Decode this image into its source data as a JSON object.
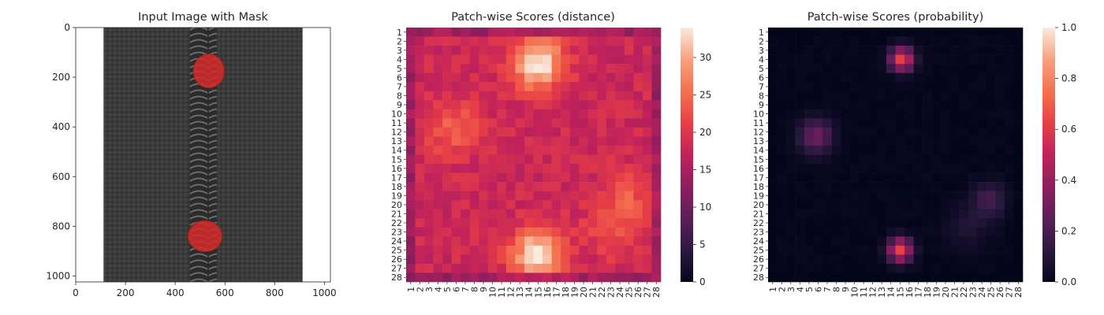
{
  "chart_data": [
    {
      "type": "image",
      "title": "Input Image with Mask",
      "xlabel": "",
      "ylabel": "",
      "xlim": [
        0,
        1024
      ],
      "ylim": [
        1024,
        0
      ],
      "xticks": [
        0,
        200,
        400,
        600,
        800,
        1000
      ],
      "yticks": [
        0,
        200,
        400,
        600,
        800,
        1000
      ],
      "xtick_labels": [
        "0",
        "200",
        "400",
        "600",
        "800",
        "1000"
      ],
      "ytick_labels": [
        "0",
        "200",
        "400",
        "600",
        "800",
        "1000"
      ],
      "fabric_color": "#3a3a3a",
      "teeth_color": "#555555",
      "mask_color": "#d62a2a",
      "mask_regions": [
        {
          "cx": 535,
          "cy": 175,
          "rx": 62,
          "ry": 68
        },
        {
          "cx": 520,
          "cy": 840,
          "rx": 68,
          "ry": 62
        }
      ]
    },
    {
      "type": "heatmap",
      "title": "Patch-wise Scores (distance)",
      "xlabel": "",
      "ylabel": "",
      "x_tick_labels": [
        "1",
        "2",
        "3",
        "4",
        "5",
        "6",
        "7",
        "8",
        "9",
        "10",
        "11",
        "12",
        "13",
        "14",
        "15",
        "16",
        "17",
        "18",
        "19",
        "20",
        "21",
        "22",
        "23",
        "24",
        "25",
        "26",
        "27",
        "28"
      ],
      "y_tick_labels": [
        "1",
        "2",
        "3",
        "4",
        "5",
        "6",
        "7",
        "8",
        "9",
        "10",
        "11",
        "12",
        "13",
        "14",
        "15",
        "16",
        "17",
        "18",
        "19",
        "20",
        "21",
        "22",
        "23",
        "24",
        "25",
        "26",
        "27",
        "28"
      ],
      "grid_size": 28,
      "colormap": "rocket",
      "colorbar": {
        "min": 0,
        "max": 34,
        "ticks": [
          0,
          5,
          10,
          15,
          20,
          25,
          30
        ],
        "tick_labels": [
          "0",
          "5",
          "10",
          "15",
          "20",
          "25",
          "30"
        ]
      },
      "base_value": 18,
      "hotspots": [
        {
          "row": 4.5,
          "col": 15,
          "amp": 16,
          "sigma": 2.0
        },
        {
          "row": 25.5,
          "col": 15,
          "amp": 16,
          "sigma": 2.0
        },
        {
          "row": 11.5,
          "col": 5.5,
          "amp": 6,
          "sigma": 2.2
        },
        {
          "row": 19.5,
          "col": 25,
          "amp": 5,
          "sigma": 2.2
        },
        {
          "row": 23,
          "col": 23,
          "amp": 4,
          "sigma": 2.0
        }
      ],
      "edge_value": 14
    },
    {
      "type": "heatmap",
      "title": "Patch-wise Scores (probability)",
      "xlabel": "",
      "ylabel": "",
      "x_tick_labels": [
        "1",
        "2",
        "3",
        "4",
        "5",
        "6",
        "7",
        "8",
        "9",
        "10",
        "11",
        "12",
        "13",
        "14",
        "15",
        "16",
        "17",
        "18",
        "19",
        "20",
        "21",
        "22",
        "23",
        "24",
        "25",
        "26",
        "27",
        "28"
      ],
      "y_tick_labels": [
        "1",
        "2",
        "3",
        "4",
        "5",
        "6",
        "7",
        "8",
        "9",
        "10",
        "11",
        "12",
        "13",
        "14",
        "15",
        "16",
        "17",
        "18",
        "19",
        "20",
        "21",
        "22",
        "23",
        "24",
        "25",
        "26",
        "27",
        "28"
      ],
      "grid_size": 28,
      "colormap": "rocket",
      "colorbar": {
        "min": 0.0,
        "max": 1.0,
        "ticks": [
          0.0,
          0.2,
          0.4,
          0.6,
          0.8,
          1.0
        ],
        "tick_labels": [
          "0.0",
          "0.2",
          "0.4",
          "0.6",
          "0.8",
          "1.0"
        ]
      },
      "base_value": 0.01,
      "hotspots": [
        {
          "row": 4,
          "col": 15.2,
          "amp": 0.62,
          "sigma": 0.9
        },
        {
          "row": 25,
          "col": 15,
          "amp": 0.62,
          "sigma": 0.9
        },
        {
          "row": 12.5,
          "col": 5.8,
          "amp": 0.28,
          "sigma": 1.3
        },
        {
          "row": 19.5,
          "col": 24.8,
          "amp": 0.18,
          "sigma": 1.3
        },
        {
          "row": 22.5,
          "col": 22.5,
          "amp": 0.08,
          "sigma": 1.6
        }
      ],
      "edge_value": 0.0
    }
  ]
}
